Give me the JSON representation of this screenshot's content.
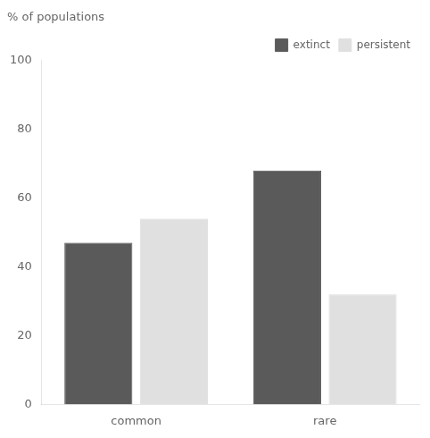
{
  "chart_data": {
    "type": "bar",
    "ylabel": "% of populations",
    "categories": [
      "common",
      "rare"
    ],
    "series": [
      {
        "name": "extinct",
        "color": "#5a5a5a",
        "values": [
          47,
          68
        ]
      },
      {
        "name": "persistent",
        "color": "#e0e0e0",
        "values": [
          54,
          32
        ]
      }
    ],
    "ylim": [
      0,
      100
    ],
    "yticks": [
      0,
      20,
      40,
      60,
      80,
      100
    ],
    "grid": false,
    "legend": "upper right"
  }
}
